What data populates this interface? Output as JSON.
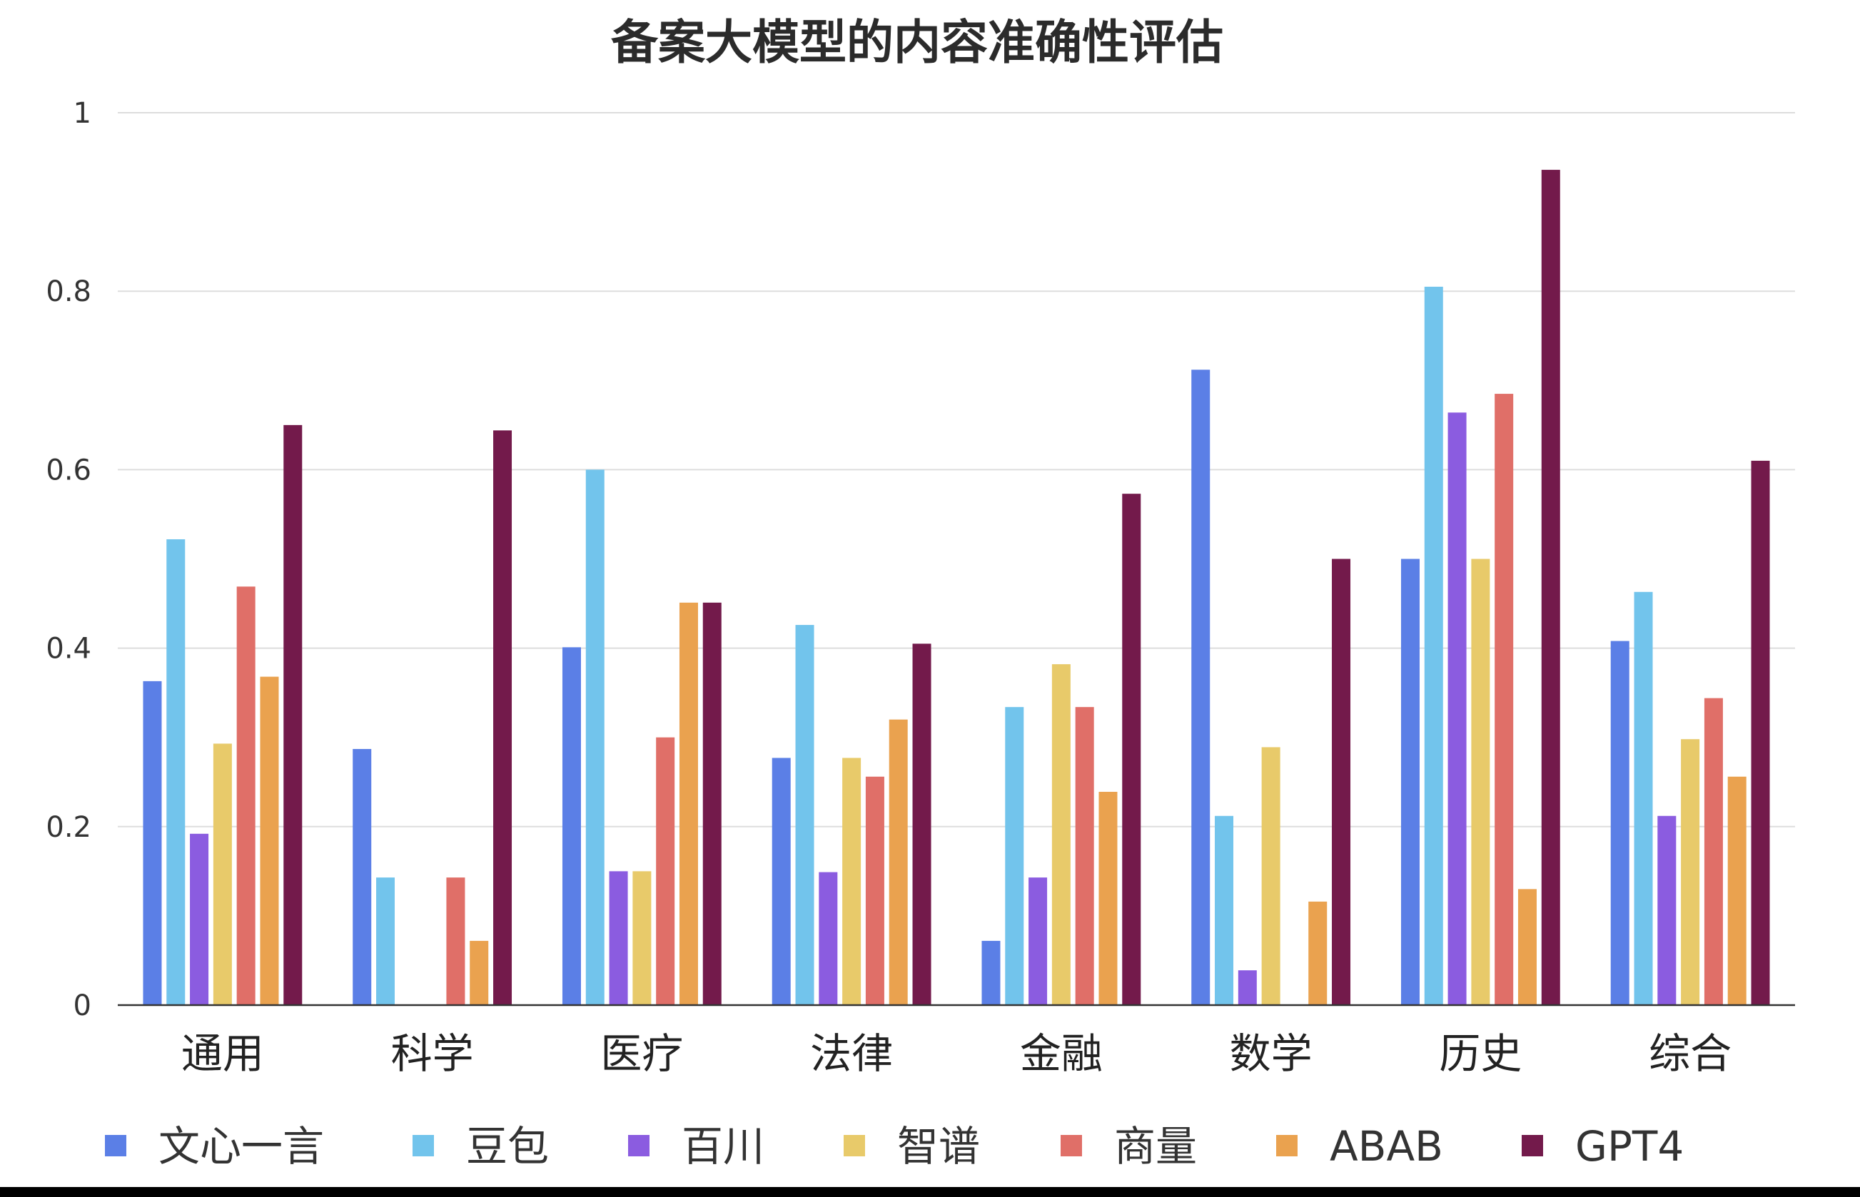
{
  "chart_data": {
    "type": "bar",
    "title": "备案大模型的内容准确性评估",
    "xlabel": "",
    "ylabel": "",
    "ylim": [
      0,
      1
    ],
    "yticks": [
      "0",
      "0.2",
      "0.4",
      "0.6",
      "0.8",
      "1"
    ],
    "grid": true,
    "legend_position": "bottom",
    "categories": [
      "通用",
      "科学",
      "医疗",
      "法律",
      "金融",
      "数学",
      "历史",
      "综合"
    ],
    "series": [
      {
        "name": "文心一言",
        "color": "#5B7FE6",
        "values": [
          0.363,
          0.287,
          0.401,
          0.277,
          0.072,
          0.712,
          0.5,
          0.408
        ]
      },
      {
        "name": "豆包",
        "color": "#72C4EC",
        "values": [
          0.522,
          0.143,
          0.6,
          0.426,
          0.334,
          0.212,
          0.805,
          0.463
        ]
      },
      {
        "name": "百川",
        "color": "#8B5CE0",
        "values": [
          0.192,
          0,
          0.15,
          0.149,
          0.143,
          0.039,
          0.664,
          0.212
        ]
      },
      {
        "name": "智谱",
        "color": "#E8CA6A",
        "values": [
          0.293,
          0,
          0.15,
          0.277,
          0.382,
          0.289,
          0.5,
          0.298
        ]
      },
      {
        "name": "商量",
        "color": "#E06F68",
        "values": [
          0.469,
          0.143,
          0.3,
          0.256,
          0.334,
          0,
          0.685,
          0.344
        ]
      },
      {
        "name": "ABAB",
        "color": "#EAA24F",
        "values": [
          0.368,
          0.072,
          0.451,
          0.32,
          0.239,
          0.116,
          0.13,
          0.256
        ]
      },
      {
        "name": "GPT4",
        "color": "#731A4B",
        "values": [
          0.65,
          0.644,
          0.451,
          0.405,
          0.573,
          0.5,
          0.936,
          0.61
        ]
      }
    ]
  }
}
